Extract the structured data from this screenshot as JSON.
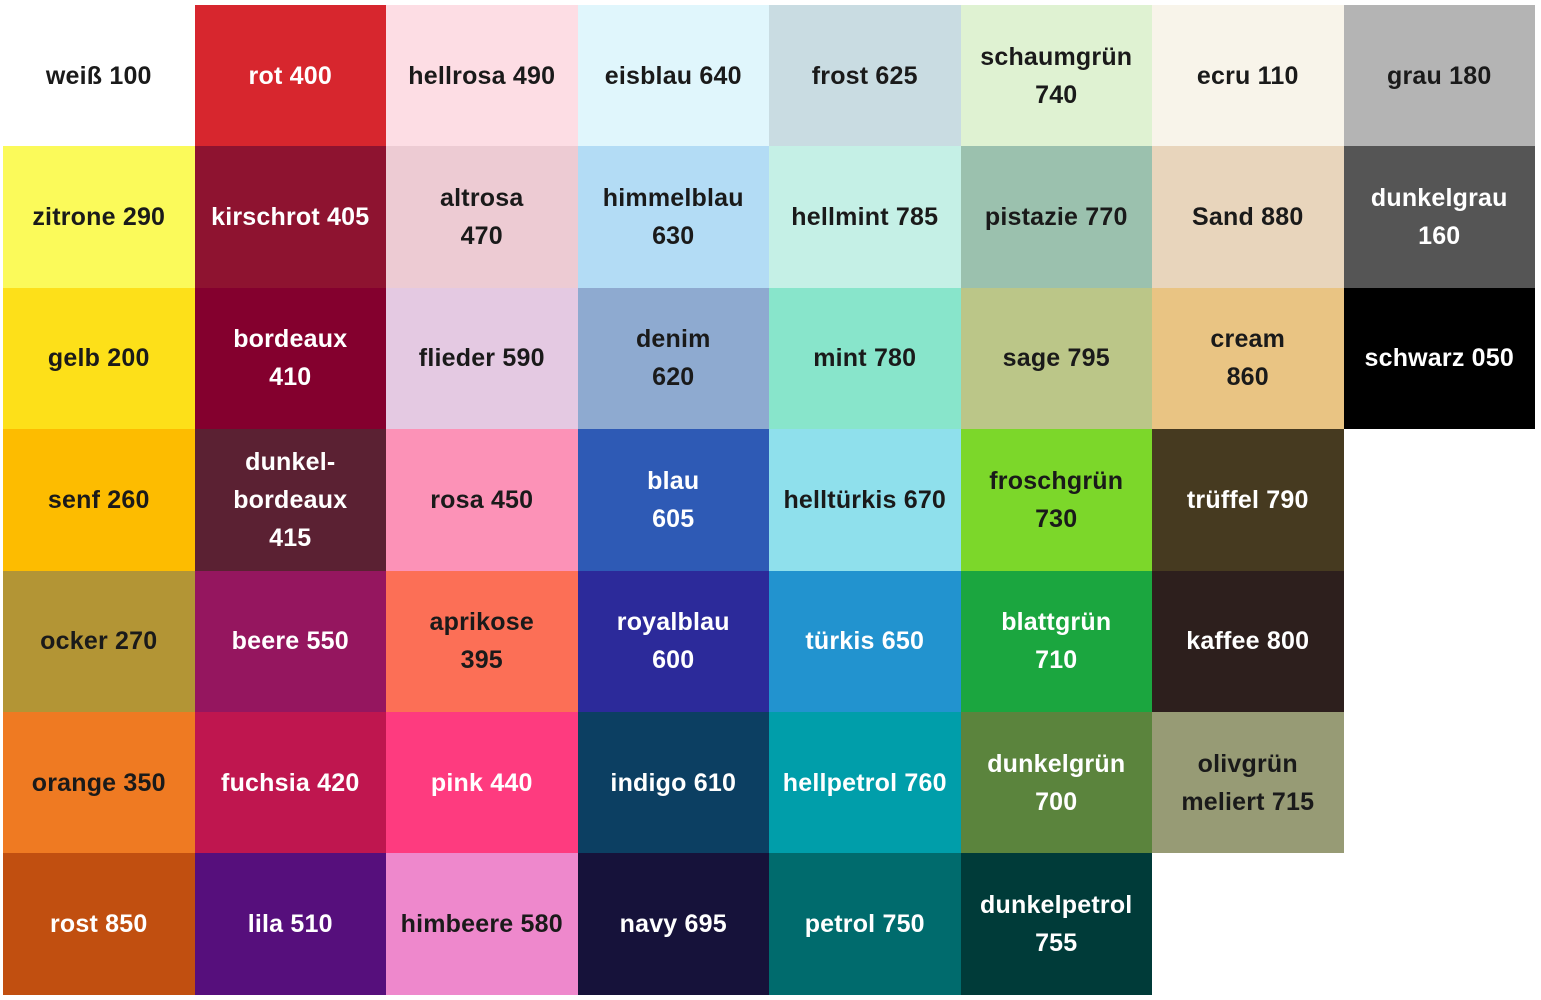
{
  "swatches": [
    [
      {
        "label": "weiß 100",
        "color": "#ffffff",
        "text": "#1a1a1a"
      },
      {
        "label": "rot 400",
        "color": "#d7262e",
        "text": "#ffffff"
      },
      {
        "label": "hellrosa 490",
        "color": "#fddde4",
        "text": "#1a1a1a"
      },
      {
        "label": "eisblau 640",
        "color": "#e0f6fc",
        "text": "#1a1a1a"
      },
      {
        "label": "frost 625",
        "color": "#c9dce2",
        "text": "#1a1a1a"
      },
      {
        "label": "schaumgrün\n740",
        "color": "#dff2d2",
        "text": "#1a1a1a"
      },
      {
        "label": "ecru 110",
        "color": "#f8f4ea",
        "text": "#1a1a1a"
      },
      {
        "label": "grau 180",
        "color": "#b4b4b4",
        "text": "#1a1a1a"
      }
    ],
    [
      {
        "label": "zitrone 290",
        "color": "#fbfa5a",
        "text": "#1a1a1a"
      },
      {
        "label": "kirschrot 405",
        "color": "#8e1330",
        "text": "#ffffff"
      },
      {
        "label": "altrosa\n470",
        "color": "#edcbd3",
        "text": "#1a1a1a"
      },
      {
        "label": "himmelblau\n630",
        "color": "#b3dcf5",
        "text": "#1a1a1a"
      },
      {
        "label": "hellmint 785",
        "color": "#c5f0e6",
        "text": "#1a1a1a"
      },
      {
        "label": "pistazie 770",
        "color": "#9bc1ae",
        "text": "#1a1a1a"
      },
      {
        "label": "Sand 880",
        "color": "#e8d5bc",
        "text": "#1a1a1a"
      },
      {
        "label": "dunkelgrau\n160",
        "color": "#555555",
        "text": "#ffffff"
      }
    ],
    [
      {
        "label": "gelb 200",
        "color": "#fde019",
        "text": "#1a1a1a"
      },
      {
        "label": "bordeaux\n410",
        "color": "#84002e",
        "text": "#ffffff"
      },
      {
        "label": "flieder 590",
        "color": "#e4c9e2",
        "text": "#1a1a1a"
      },
      {
        "label": "denim\n620",
        "color": "#8eaad0",
        "text": "#1a1a1a"
      },
      {
        "label": "mint 780",
        "color": "#88e5cb",
        "text": "#1a1a1a"
      },
      {
        "label": "sage 795",
        "color": "#bbc688",
        "text": "#1a1a1a"
      },
      {
        "label": "cream\n860",
        "color": "#e9c483",
        "text": "#1a1a1a"
      },
      {
        "label": "schwarz 050",
        "color": "#000000",
        "text": "#ffffff"
      }
    ],
    [
      {
        "label": "senf 260",
        "color": "#fdbc00",
        "text": "#1a1a1a"
      },
      {
        "label": "dunkel-\nbordeaux\n415",
        "color": "#5b2133",
        "text": "#ffffff"
      },
      {
        "label": "rosa 450",
        "color": "#fc92b7",
        "text": "#1a1a1a"
      },
      {
        "label": "blau\n605",
        "color": "#2e5ab5",
        "text": "#ffffff"
      },
      {
        "label": "helltürkis 670",
        "color": "#8fe0ec",
        "text": "#1a1a1a"
      },
      {
        "label": "froschgrün\n730",
        "color": "#7cd72a",
        "text": "#1a1a1a"
      },
      {
        "label": "trüffel 790",
        "color": "#463a20",
        "text": "#ffffff"
      },
      null
    ],
    [
      {
        "label": "ocker 270",
        "color": "#b39535",
        "text": "#1a1a1a"
      },
      {
        "label": "beere 550",
        "color": "#95165f",
        "text": "#ffffff"
      },
      {
        "label": "aprikose\n395",
        "color": "#fc6f56",
        "text": "#1a1a1a"
      },
      {
        "label": "royalblau\n600",
        "color": "#2c2a9a",
        "text": "#ffffff"
      },
      {
        "label": "türkis 650",
        "color": "#2293cf",
        "text": "#ffffff"
      },
      {
        "label": "blattgrün\n710",
        "color": "#1ba63f",
        "text": "#ffffff"
      },
      {
        "label": "kaffee 800",
        "color": "#2d1f1d",
        "text": "#ffffff"
      },
      null
    ],
    [
      {
        "label": "orange 350",
        "color": "#ef7a22",
        "text": "#1a1a1a"
      },
      {
        "label": "fuchsia 420",
        "color": "#bf164f",
        "text": "#ffffff"
      },
      {
        "label": "pink 440",
        "color": "#fe3b7f",
        "text": "#ffffff"
      },
      {
        "label": "indigo 610",
        "color": "#0c3f62",
        "text": "#ffffff"
      },
      {
        "label": "hellpetrol 760",
        "color": "#009eaa",
        "text": "#ffffff"
      },
      {
        "label": "dunkelgrün\n700",
        "color": "#5b843d",
        "text": "#ffffff"
      },
      {
        "label": "olivgrün\nmeliert 715",
        "color": "#979b75",
        "text": "#1a1a1a"
      },
      null
    ],
    [
      {
        "label": "rost 850",
        "color": "#c14f10",
        "text": "#ffffff"
      },
      {
        "label": "lila 510",
        "color": "#560f7c",
        "text": "#ffffff"
      },
      {
        "label": "himbeere 580",
        "color": "#ee88cc",
        "text": "#1a1a1a"
      },
      {
        "label": "navy 695",
        "color": "#16123a",
        "text": "#ffffff"
      },
      {
        "label": "petrol 750",
        "color": "#006b6d",
        "text": "#ffffff"
      },
      {
        "label": "dunkelpetrol\n755",
        "color": "#003b39",
        "text": "#ffffff"
      },
      null,
      null
    ]
  ]
}
